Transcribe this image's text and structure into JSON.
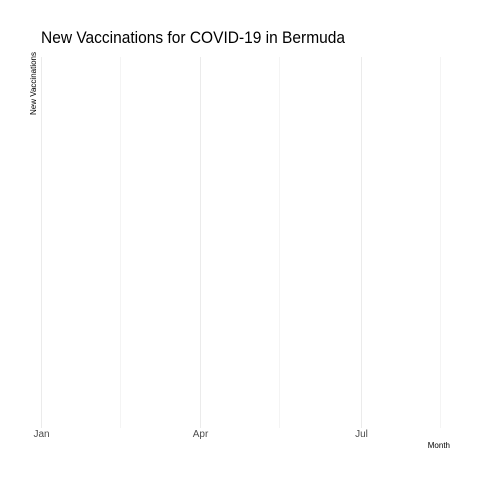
{
  "chart_data": {
    "type": "line",
    "title": "New Vaccinations for COVID-19 in Bermuda",
    "xlabel": "Month",
    "ylabel": "New Vaccinations",
    "x_ticks": [
      "Jan",
      "Apr",
      "Jul"
    ],
    "xlim": [
      "2021-01-01",
      "2021-09-01"
    ],
    "series": [],
    "grid": true,
    "legend": "none"
  }
}
